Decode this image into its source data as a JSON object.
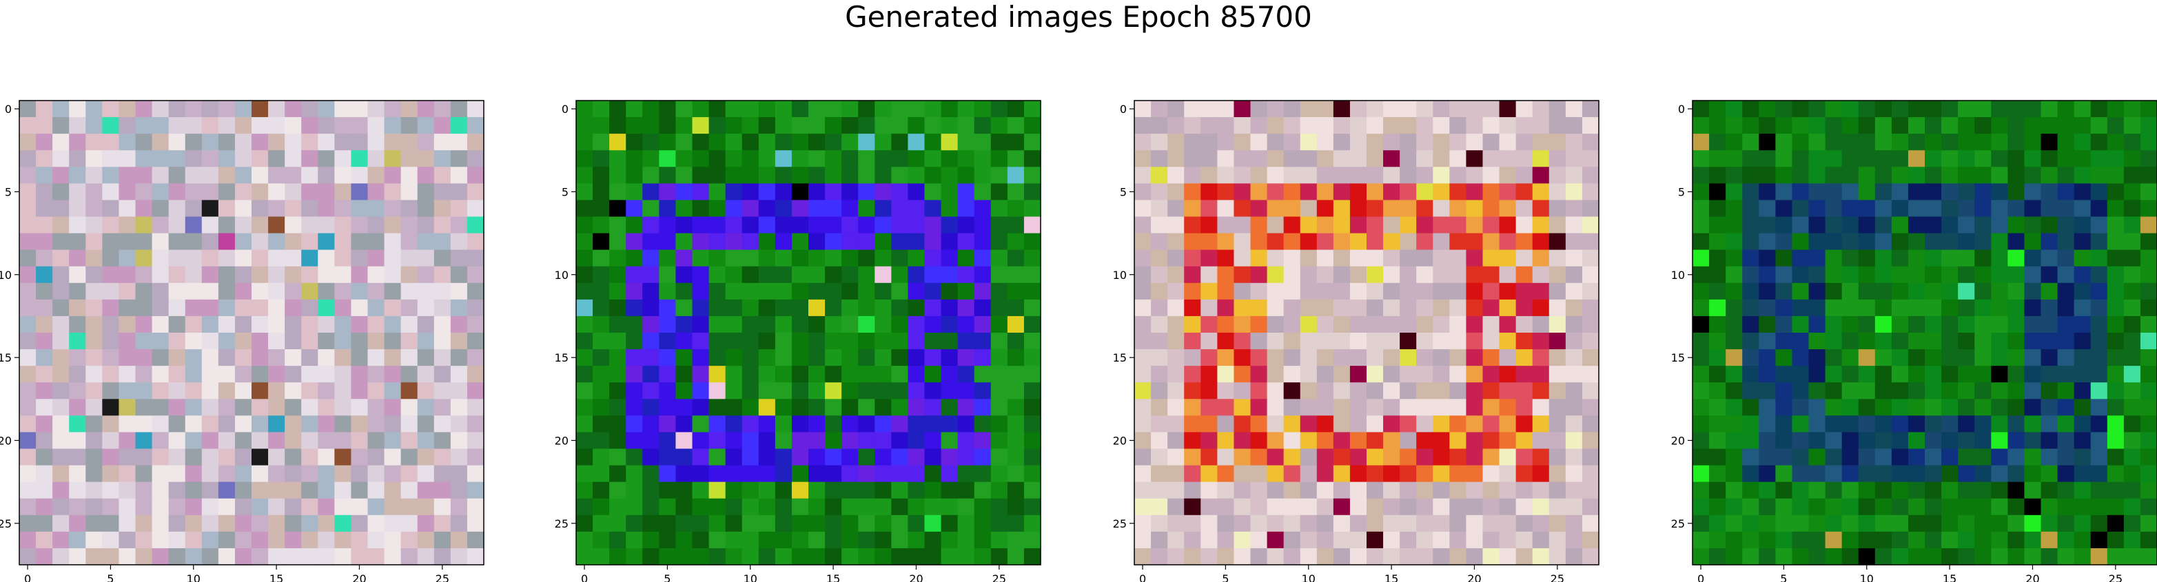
{
  "title": "Generated images Epoch 85700",
  "chart_data": [
    {
      "type": "heatmap",
      "title": "",
      "xlabel": "",
      "ylabel": "",
      "grid_size": [
        28,
        28
      ],
      "xlim": [
        -0.5,
        27.5
      ],
      "ylim": [
        27.5,
        -0.5
      ],
      "xticks": [
        "0",
        "5",
        "10",
        "15",
        "20",
        "25"
      ],
      "yticks": [
        "0",
        "5",
        "10",
        "15",
        "20",
        "25"
      ],
      "grid": false,
      "palette": [
        "#ddd0dd",
        "#c8b0c8",
        "#e8e0e8",
        "#b8a8c0",
        "#d0b8b0",
        "#f0e8e8",
        "#c898c0",
        "#a8b8c8",
        "#e0c0c8",
        "#98a0a8"
      ],
      "accents": [
        "#30e0b0",
        "#c8c060",
        "#8c5030",
        "#1a1a1a",
        "#c040a0",
        "#30a0c0",
        "#7070c0"
      ],
      "pattern": "noise"
    },
    {
      "type": "heatmap",
      "title": "",
      "xlabel": "",
      "ylabel": "",
      "grid_size": [
        28,
        28
      ],
      "xlim": [
        -0.5,
        27.5
      ],
      "ylim": [
        27.5,
        -0.5
      ],
      "xticks": [
        "0",
        "5",
        "10",
        "15",
        "20",
        "25"
      ],
      "yticks": [
        "0",
        "5",
        "10",
        "15",
        "20",
        "25"
      ],
      "grid": false,
      "palette": [
        "#0a7a0a",
        "#118c11",
        "#0d6b1a",
        "#1a9a1a",
        "#0a5c0a",
        "#22a022"
      ],
      "ring_palette": [
        "#3a10e8",
        "#5520f0",
        "#2a0ad0",
        "#6a20e0",
        "#4030ff",
        "#2020c0"
      ],
      "accents": [
        "#c8e030",
        "#f0c8e0",
        "#20e040",
        "#000000",
        "#e0d020",
        "#60c0d0"
      ],
      "pattern": "ring"
    },
    {
      "type": "heatmap",
      "title": "",
      "xlabel": "",
      "ylabel": "",
      "grid_size": [
        28,
        28
      ],
      "xlim": [
        -0.5,
        27.5
      ],
      "ylim": [
        27.5,
        -0.5
      ],
      "xticks": [
        "0",
        "5",
        "10",
        "15",
        "20",
        "25"
      ],
      "yticks": [
        "0",
        "5",
        "10",
        "15",
        "20",
        "25"
      ],
      "grid": false,
      "palette": [
        "#d8c0c8",
        "#e0d0d0",
        "#c8b0c0",
        "#f0e0e0",
        "#b8a8b8",
        "#d0b8a8"
      ],
      "ring_palette": [
        "#e03020",
        "#f07030",
        "#f0a040",
        "#d81010",
        "#e05060",
        "#f0c030",
        "#c82050"
      ],
      "accents": [
        "#400010",
        "#900040",
        "#f0f0c0",
        "#e0e040"
      ],
      "pattern": "ring"
    },
    {
      "type": "heatmap",
      "title": "",
      "xlabel": "",
      "ylabel": "",
      "grid_size": [
        28,
        28
      ],
      "xlim": [
        -0.5,
        27.5
      ],
      "ylim": [
        27.5,
        -0.5
      ],
      "xticks": [
        "0",
        "5",
        "10",
        "15",
        "20",
        "25"
      ],
      "yticks": [
        "0",
        "5",
        "10",
        "15",
        "20",
        "25"
      ],
      "grid": false,
      "palette": [
        "#0a7a0a",
        "#118c11",
        "#0d6b1a",
        "#1a9a1a",
        "#0a5c0a",
        "#0a8a1a"
      ],
      "ring_palette": [
        "#103080",
        "#0a1a60",
        "#205a80",
        "#184870",
        "#0a4060",
        "#104a5a"
      ],
      "accents": [
        "#40e0a0",
        "#000000",
        "#20f020",
        "#c0a040"
      ],
      "pattern": "ring"
    }
  ]
}
